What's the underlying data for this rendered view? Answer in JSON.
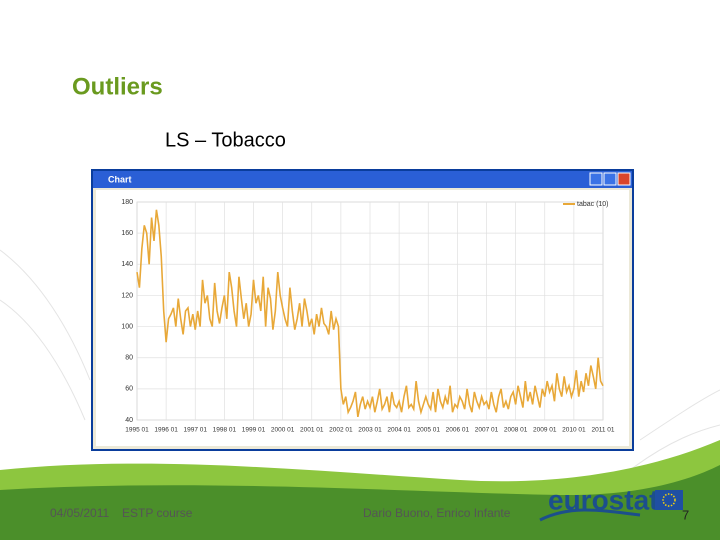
{
  "header": {
    "title": "Outliers",
    "subtitle": "LS – Tobacco"
  },
  "window_title": "Chart",
  "chart_data": {
    "type": "line",
    "categories": [
      "1995 01",
      null,
      null,
      null,
      null,
      null,
      null,
      null,
      null,
      null,
      null,
      null,
      "1996 01",
      null,
      null,
      null,
      null,
      null,
      null,
      null,
      null,
      null,
      null,
      null,
      "1997 01",
      null,
      null,
      null,
      null,
      null,
      null,
      null,
      null,
      null,
      null,
      null,
      "1998 01",
      null,
      null,
      null,
      null,
      null,
      null,
      null,
      null,
      null,
      null,
      null,
      "1999 01",
      null,
      null,
      null,
      null,
      null,
      null,
      null,
      null,
      null,
      null,
      null,
      "2000 01",
      null,
      null,
      null,
      null,
      null,
      null,
      null,
      null,
      null,
      null,
      null,
      "2001 01",
      null,
      null,
      null,
      null,
      null,
      null,
      null,
      null,
      null,
      null,
      null,
      "2002 01",
      null,
      null,
      null,
      null,
      null,
      null,
      null,
      null,
      null,
      null,
      null,
      "2003 01",
      null,
      null,
      null,
      null,
      null,
      null,
      null,
      null,
      null,
      null,
      null,
      "2004 01",
      null,
      null,
      null,
      null,
      null,
      null,
      null,
      null,
      null,
      null,
      null,
      "2005 01",
      null,
      null,
      null,
      null,
      null,
      null,
      null,
      null,
      null,
      null,
      null,
      "2006 01",
      null,
      null,
      null,
      null,
      null,
      null,
      null,
      null,
      null,
      null,
      null,
      "2007 01",
      null,
      null,
      null,
      null,
      null,
      null,
      null,
      null,
      null,
      null,
      null,
      "2008 01",
      null,
      null,
      null,
      null,
      null,
      null,
      null,
      null,
      null,
      null,
      null,
      "2009 01",
      null,
      null,
      null,
      null,
      null,
      null,
      null,
      null,
      null,
      null,
      null,
      "2010 01",
      null,
      null,
      null,
      null,
      null,
      null,
      null,
      null,
      null,
      null,
      null,
      "2011 01"
    ],
    "series": [
      {
        "name": "tabac (10)",
        "color": "#e8a838",
        "values": [
          135,
          125,
          150,
          165,
          160,
          140,
          170,
          155,
          175,
          165,
          145,
          110,
          90,
          105,
          108,
          112,
          100,
          118,
          105,
          95,
          110,
          112,
          100,
          108,
          98,
          110,
          100,
          130,
          115,
          120,
          105,
          100,
          128,
          110,
          102,
          112,
          120,
          105,
          135,
          125,
          110,
          100,
          132,
          118,
          105,
          115,
          100,
          108,
          130,
          115,
          120,
          110,
          132,
          100,
          125,
          118,
          98,
          110,
          135,
          120,
          112,
          105,
          100,
          125,
          110,
          98,
          105,
          115,
          100,
          118,
          110,
          100,
          105,
          95,
          108,
          100,
          112,
          102,
          100,
          95,
          110,
          98,
          105,
          100,
          60,
          50,
          55,
          45,
          48,
          52,
          58,
          42,
          50,
          55,
          47,
          52,
          48,
          55,
          45,
          52,
          60,
          47,
          50,
          55,
          45,
          58,
          50,
          48,
          52,
          45,
          55,
          62,
          48,
          50,
          47,
          65,
          52,
          45,
          50,
          55,
          50,
          47,
          58,
          45,
          60,
          52,
          48,
          55,
          50,
          62,
          45,
          50,
          48,
          55,
          52,
          47,
          60,
          50,
          45,
          58,
          52,
          48,
          55,
          50,
          52,
          47,
          58,
          50,
          45,
          55,
          60,
          48,
          52,
          47,
          55,
          58,
          50,
          62,
          55,
          48,
          65,
          52,
          58,
          50,
          62,
          55,
          48,
          60,
          55,
          65,
          58,
          62,
          52,
          70,
          60,
          55,
          68,
          58,
          62,
          55,
          60,
          72,
          55,
          65,
          58,
          70,
          62,
          75,
          68,
          60,
          80,
          65,
          62
        ]
      }
    ],
    "ylim": [
      40,
      180
    ],
    "yticks": [
      40,
      60,
      80,
      100,
      120,
      140,
      160,
      180
    ],
    "grid": true,
    "legend": "top-right"
  },
  "footer": {
    "date": "04/05/2011",
    "course": "ESTP course",
    "authors": "Dario Buono, Enrico Infante",
    "logo": "eurostat",
    "page": "7"
  }
}
